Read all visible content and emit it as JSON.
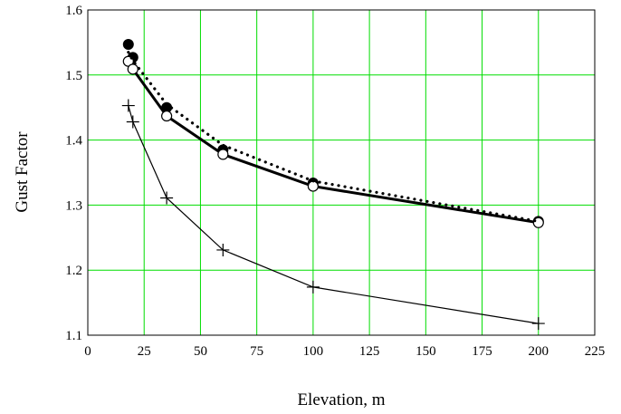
{
  "chart_data": {
    "type": "line",
    "title": "",
    "xlabel": "Elevation, m",
    "ylabel": "Gust Factor",
    "xlim": [
      0,
      225
    ],
    "ylim": [
      1.1,
      1.6
    ],
    "x_ticks": [
      0,
      25,
      50,
      75,
      100,
      125,
      150,
      175,
      200,
      225
    ],
    "y_ticks": [
      1.1,
      1.2,
      1.3,
      1.4,
      1.5,
      1.6
    ],
    "x_tick_labels": [
      "0",
      "25",
      "50",
      "75",
      "100",
      "125",
      "150",
      "175",
      "200",
      "225"
    ],
    "y_tick_labels": [
      "1.1",
      "1.2",
      "1.3",
      "1.4",
      "1.5",
      "1.6"
    ],
    "grid": true,
    "grid_color": "#00dd00",
    "legend": "none",
    "series": [
      {
        "marker": "filled-circle",
        "line": "none",
        "color": "#000000",
        "points": [
          [
            18,
            1.547
          ],
          [
            20,
            1.527
          ],
          [
            35,
            1.45
          ],
          [
            60,
            1.385
          ],
          [
            100,
            1.334
          ],
          [
            200,
            1.275
          ]
        ]
      },
      {
        "marker": "open-circle",
        "line": "thick-solid",
        "color": "#000000",
        "points": [
          [
            18,
            1.521
          ],
          [
            20,
            1.509
          ],
          [
            35,
            1.437
          ],
          [
            60,
            1.378
          ],
          [
            100,
            1.329
          ],
          [
            200,
            1.273
          ]
        ]
      },
      {
        "marker": "none",
        "line": "dotted",
        "color": "#000000",
        "points": [
          [
            18,
            1.535
          ],
          [
            20,
            1.522
          ],
          [
            35,
            1.455
          ],
          [
            60,
            1.392
          ],
          [
            100,
            1.337
          ],
          [
            200,
            1.275
          ]
        ]
      },
      {
        "marker": "plus",
        "line": "thin-solid",
        "color": "#000000",
        "points": [
          [
            18,
            1.453
          ],
          [
            20,
            1.428
          ],
          [
            35,
            1.311
          ],
          [
            60,
            1.231
          ],
          [
            100,
            1.174
          ],
          [
            200,
            1.118
          ]
        ]
      }
    ]
  }
}
